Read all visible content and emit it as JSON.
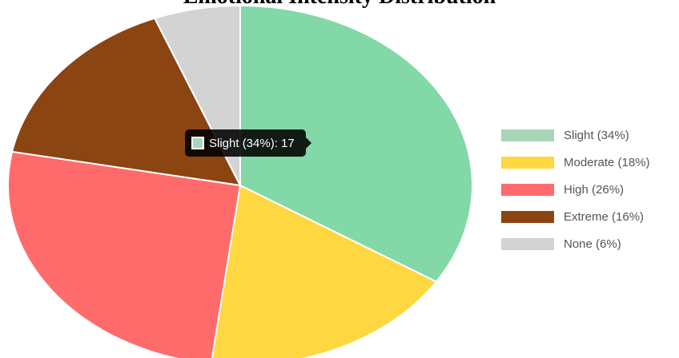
{
  "chart_data": {
    "type": "pie",
    "title": "Emotional Intensity Distribution",
    "labels": [
      "Slight (34%)",
      "Moderate (18%)",
      "High (26%)",
      "Extreme (16%)",
      "None (6%)"
    ],
    "values": [
      17,
      9,
      13,
      8,
      3
    ],
    "colors": [
      "#82d8a6",
      "#ffd740",
      "#ff6b6b",
      "#8b4513",
      "#d3d3d3"
    ],
    "legend_colors": [
      "#a8d5b8",
      "#ffd740",
      "#ff6b6b",
      "#8b4513",
      "#d3d3d3"
    ],
    "legend_position": "right"
  },
  "tooltip": {
    "text": "Slight (34%): 17",
    "color": "#a8d5b8"
  }
}
